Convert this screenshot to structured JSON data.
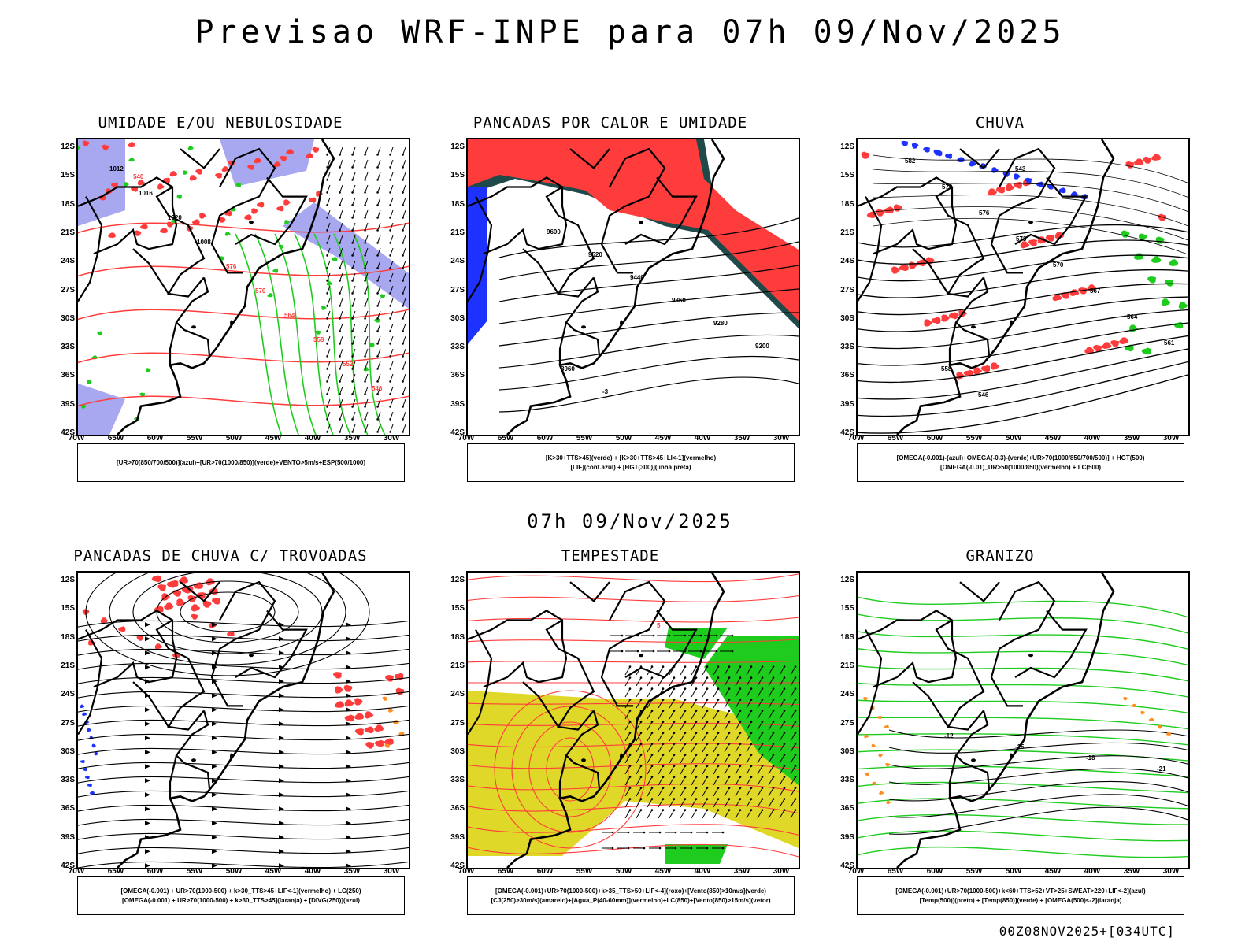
{
  "header": {
    "title": "Previsao WRF-INPE  para 07h 09/Nov/2025",
    "subtitle": "07h 09/Nov/2025",
    "footer": "00Z08NOV2025+[034UTC]"
  },
  "axes": {
    "lat_labels": [
      "12S",
      "15S",
      "18S",
      "21S",
      "24S",
      "27S",
      "30S",
      "33S",
      "36S",
      "39S",
      "42S"
    ],
    "lon_labels": [
      "70W",
      "65W",
      "60W",
      "55W",
      "50W",
      "45W",
      "40W",
      "35W",
      "30W"
    ]
  },
  "colors": {
    "red": "#ff3c3c",
    "green": "#1ecc1e",
    "blue": "#1e32ff",
    "lilac": "#a8a8f0",
    "yellow": "#e0d828",
    "darkteal": "#1e4a4a",
    "orange": "#ff8c1e"
  },
  "panels": [
    {
      "id": "umidade",
      "title": "UMIDADE E/OU NEBULOSIDADE",
      "legend_line1": "[UR>70(850/700/500)](azul)+[UR>70(1000/850)](verde)+VENTO>5m/s+ESP(500/1000)",
      "legend_line2": "",
      "contour_labels": [
        "1012",
        "1016",
        "1020",
        "1008",
        "576",
        "570",
        "564",
        "558",
        "552",
        "546",
        "540"
      ]
    },
    {
      "id": "pancadas_calor",
      "title": "PANCADAS POR CALOR E UMIDADE",
      "legend_line1": "[K>30+TTS>45](verde) + [K>30+TTS>45+LI<-1](vermelho)",
      "legend_line2": "[LIF](cont.azul) + [HGT(300)](linha preta)",
      "contour_labels": [
        "9600",
        "9520",
        "9440",
        "9360",
        "9280",
        "9200",
        "8960",
        "-3"
      ]
    },
    {
      "id": "chuva",
      "title": "CHUVA",
      "legend_line1": "[OMEGA(-0.001)-(azul)+OMEGA(-0.3)-(verde)+UR>70(1000/850/700/500)] + HGT(500)",
      "legend_line2": "[OMEGA(-0.01)_UR>50(1000/850)(vermelho) + LC(500)",
      "contour_labels": [
        "582",
        "579",
        "576",
        "573",
        "570",
        "567",
        "564",
        "561",
        "558",
        "546",
        "543"
      ]
    },
    {
      "id": "trovoadas",
      "title": "PANCADAS DE CHUVA C/ TROVOADAS",
      "legend_line1": "[OMEGA(-0.001) + UR>70(1000-500) + k>30_TTS>45+LIF<-1](vermelho) + LC(250)",
      "legend_line2": "[OMEGA(-0.001) + UR>70(1000-500) + k>30_TTS>45](laranja) + [DIVG(250)](azul)",
      "contour_labels": []
    },
    {
      "id": "tempestade",
      "title": "TEMPESTADE",
      "legend_line1": "[OMEGA(-0.001)+UR>70(1000-500)+k>35_TTS>50+LIF<-4](roxo)+[Vento(850)>10m/s](verde)",
      "legend_line2": "[CJ(250)>30m/s](amarelo)+[Agua_P(40-60mm)](vermelho)+LC(850)+[Vento(850)>15m/s](vetor)",
      "contour_labels": [
        "5"
      ]
    },
    {
      "id": "granizo",
      "title": "GRANIZO",
      "legend_line1": "[OMEGA(-0.001)+UR>70(1000-500)+k<60+TTS>52+VT>25+SWEAT>220+LIF<-2](azul)",
      "legend_line2": "[Temp(500)](preto) + [Temp(850)](verde) + [OMEGA(500)<-2](laranja)",
      "contour_labels": [
        "-12",
        "-15",
        "-18",
        "-21"
      ]
    }
  ]
}
